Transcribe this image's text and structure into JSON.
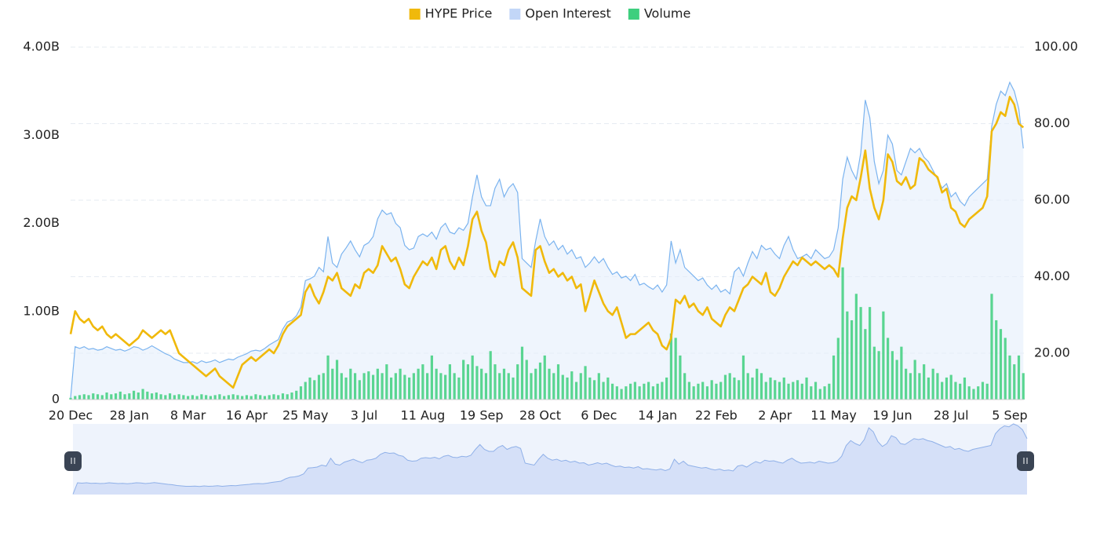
{
  "chart_data": {
    "type": "combo",
    "categories": [
      "20 Dec",
      null,
      null,
      null,
      null,
      null,
      null,
      null,
      null,
      null,
      null,
      null,
      null,
      "28 Jan",
      null,
      null,
      null,
      null,
      null,
      null,
      null,
      null,
      null,
      null,
      null,
      null,
      "8 Mar",
      null,
      null,
      null,
      null,
      null,
      null,
      null,
      null,
      null,
      null,
      null,
      null,
      "16 Apr",
      null,
      null,
      null,
      null,
      null,
      null,
      null,
      null,
      null,
      null,
      null,
      null,
      "25 May",
      null,
      null,
      null,
      null,
      null,
      null,
      null,
      null,
      null,
      null,
      null,
      null,
      "3 Jul",
      null,
      null,
      null,
      null,
      null,
      null,
      null,
      null,
      null,
      null,
      null,
      null,
      "11 Aug",
      null,
      null,
      null,
      null,
      null,
      null,
      null,
      null,
      null,
      null,
      null,
      null,
      "19 Sep",
      null,
      null,
      null,
      null,
      null,
      null,
      null,
      null,
      null,
      null,
      null,
      null,
      "28 Oct",
      null,
      null,
      null,
      null,
      null,
      null,
      null,
      null,
      null,
      null,
      null,
      null,
      "6 Dec",
      null,
      null,
      null,
      null,
      null,
      null,
      null,
      null,
      null,
      null,
      null,
      null,
      "14 Jan",
      null,
      null,
      null,
      null,
      null,
      null,
      null,
      null,
      null,
      null,
      null,
      null,
      "22 Feb",
      null,
      null,
      null,
      null,
      null,
      null,
      null,
      null,
      null,
      null,
      null,
      null,
      "2 Apr",
      null,
      null,
      null,
      null,
      null,
      null,
      null,
      null,
      null,
      null,
      null,
      null,
      "11 May",
      null,
      null,
      null,
      null,
      null,
      null,
      null,
      null,
      null,
      null,
      null,
      null,
      "19 Jun",
      null,
      null,
      null,
      null,
      null,
      null,
      null,
      null,
      null,
      null,
      null,
      null,
      "28 Jul",
      null,
      null,
      null,
      null,
      null,
      null,
      null,
      null,
      null,
      null,
      null,
      null,
      "5 Sep",
      null,
      null,
      null
    ],
    "series": [
      {
        "name": "HYPE Price",
        "type": "line",
        "axis": "y2",
        "color": "#f0b90b",
        "values": [
          25,
          31,
          29,
          28,
          29,
          27,
          26,
          27,
          25,
          24,
          25,
          24,
          23,
          22,
          23,
          24,
          26,
          25,
          24,
          25,
          26,
          25,
          26,
          23,
          20,
          19,
          18,
          17,
          16,
          15,
          14,
          15,
          16,
          14,
          13,
          12,
          11,
          14,
          17,
          18,
          19,
          18,
          19,
          20,
          21,
          20,
          22,
          25,
          27,
          28,
          29,
          30,
          36,
          38,
          35,
          33,
          36,
          40,
          39,
          41,
          37,
          36,
          35,
          38,
          37,
          41,
          42,
          41,
          43,
          48,
          46,
          44,
          45,
          42,
          38,
          37,
          40,
          42,
          44,
          43,
          45,
          42,
          47,
          48,
          44,
          42,
          45,
          43,
          48,
          55,
          57,
          52,
          49,
          42,
          40,
          44,
          43,
          47,
          49,
          45,
          37,
          36,
          35,
          47,
          48,
          44,
          41,
          42,
          40,
          41,
          39,
          40,
          37,
          38,
          31,
          35,
          39,
          36,
          33,
          31,
          30,
          32,
          28,
          24,
          25,
          25,
          26,
          27,
          28,
          26,
          25,
          22,
          21,
          24,
          34,
          33,
          35,
          32,
          33,
          31,
          30,
          32,
          29,
          28,
          27,
          30,
          32,
          31,
          34,
          37,
          38,
          40,
          39,
          38,
          41,
          36,
          35,
          37,
          40,
          42,
          44,
          43,
          45,
          44,
          43,
          44,
          43,
          42,
          43,
          42,
          40,
          50,
          58,
          61,
          60,
          66,
          73,
          63,
          58,
          55,
          60,
          72,
          70,
          65,
          64,
          66,
          63,
          64,
          71,
          70,
          68,
          67,
          66,
          62,
          63,
          58,
          57,
          54,
          53,
          55,
          56,
          57,
          58,
          61,
          78,
          80,
          83,
          82,
          87,
          85,
          80,
          79
        ]
      },
      {
        "name": "Open Interest",
        "type": "area",
        "color": "#7ab3ef",
        "values": [
          0.02,
          0.6,
          0.58,
          0.6,
          0.57,
          0.58,
          0.56,
          0.57,
          0.6,
          0.58,
          0.56,
          0.57,
          0.55,
          0.57,
          0.6,
          0.59,
          0.56,
          0.58,
          0.61,
          0.58,
          0.55,
          0.52,
          0.5,
          0.46,
          0.44,
          0.42,
          0.42,
          0.43,
          0.41,
          0.44,
          0.42,
          0.43,
          0.45,
          0.42,
          0.44,
          0.46,
          0.45,
          0.48,
          0.5,
          0.52,
          0.55,
          0.56,
          0.55,
          0.58,
          0.62,
          0.65,
          0.68,
          0.8,
          0.88,
          0.9,
          0.95,
          1.05,
          1.35,
          1.37,
          1.4,
          1.5,
          1.45,
          1.85,
          1.55,
          1.5,
          1.65,
          1.72,
          1.8,
          1.7,
          1.62,
          1.75,
          1.78,
          1.85,
          2.05,
          2.15,
          2.1,
          2.12,
          2.0,
          1.95,
          1.75,
          1.7,
          1.72,
          1.85,
          1.88,
          1.85,
          1.9,
          1.82,
          1.95,
          2.0,
          1.9,
          1.88,
          1.95,
          1.92,
          2.0,
          2.3,
          2.55,
          2.3,
          2.2,
          2.2,
          2.4,
          2.5,
          2.3,
          2.4,
          2.45,
          2.35,
          1.6,
          1.55,
          1.5,
          1.8,
          2.05,
          1.85,
          1.75,
          1.8,
          1.7,
          1.75,
          1.65,
          1.7,
          1.6,
          1.62,
          1.5,
          1.55,
          1.62,
          1.55,
          1.6,
          1.5,
          1.42,
          1.45,
          1.38,
          1.4,
          1.35,
          1.42,
          1.3,
          1.32,
          1.28,
          1.25,
          1.3,
          1.22,
          1.3,
          1.8,
          1.55,
          1.7,
          1.5,
          1.45,
          1.4,
          1.35,
          1.38,
          1.3,
          1.25,
          1.3,
          1.22,
          1.25,
          1.2,
          1.45,
          1.5,
          1.4,
          1.55,
          1.68,
          1.6,
          1.75,
          1.7,
          1.72,
          1.65,
          1.6,
          1.75,
          1.85,
          1.7,
          1.6,
          1.62,
          1.65,
          1.6,
          1.7,
          1.65,
          1.6,
          1.62,
          1.7,
          1.95,
          2.5,
          2.75,
          2.6,
          2.5,
          2.8,
          3.4,
          3.2,
          2.7,
          2.45,
          2.6,
          3.0,
          2.9,
          2.6,
          2.55,
          2.7,
          2.85,
          2.8,
          2.85,
          2.75,
          2.7,
          2.6,
          2.5,
          2.4,
          2.45,
          2.3,
          2.35,
          2.25,
          2.2,
          2.3,
          2.35,
          2.4,
          2.45,
          2.5,
          3.1,
          3.35,
          3.5,
          3.45,
          3.6,
          3.5,
          3.3,
          2.85
        ]
      },
      {
        "name": "Volume",
        "type": "bar",
        "color": "#3ecf7e",
        "values": [
          0.02,
          0.04,
          0.05,
          0.06,
          0.05,
          0.07,
          0.06,
          0.05,
          0.08,
          0.06,
          0.07,
          0.09,
          0.06,
          0.07,
          0.1,
          0.08,
          0.12,
          0.09,
          0.07,
          0.08,
          0.06,
          0.05,
          0.07,
          0.05,
          0.06,
          0.05,
          0.04,
          0.05,
          0.04,
          0.06,
          0.05,
          0.04,
          0.05,
          0.06,
          0.04,
          0.05,
          0.06,
          0.05,
          0.04,
          0.05,
          0.04,
          0.06,
          0.05,
          0.04,
          0.05,
          0.06,
          0.05,
          0.07,
          0.06,
          0.08,
          0.1,
          0.15,
          0.2,
          0.25,
          0.22,
          0.28,
          0.3,
          0.5,
          0.35,
          0.45,
          0.3,
          0.25,
          0.35,
          0.3,
          0.22,
          0.3,
          0.32,
          0.28,
          0.35,
          0.3,
          0.4,
          0.25,
          0.3,
          0.35,
          0.28,
          0.25,
          0.3,
          0.35,
          0.4,
          0.3,
          0.5,
          0.35,
          0.3,
          0.28,
          0.4,
          0.3,
          0.25,
          0.45,
          0.4,
          0.5,
          0.38,
          0.35,
          0.3,
          0.55,
          0.4,
          0.3,
          0.35,
          0.3,
          0.25,
          0.4,
          0.6,
          0.45,
          0.3,
          0.35,
          0.42,
          0.5,
          0.35,
          0.3,
          0.4,
          0.28,
          0.25,
          0.32,
          0.2,
          0.3,
          0.38,
          0.25,
          0.22,
          0.3,
          0.2,
          0.25,
          0.18,
          0.15,
          0.12,
          0.15,
          0.18,
          0.2,
          0.15,
          0.18,
          0.2,
          0.15,
          0.18,
          0.2,
          0.25,
          0.75,
          0.7,
          0.5,
          0.3,
          0.2,
          0.15,
          0.18,
          0.2,
          0.15,
          0.22,
          0.18,
          0.2,
          0.28,
          0.3,
          0.25,
          0.22,
          0.5,
          0.3,
          0.25,
          0.35,
          0.3,
          0.2,
          0.25,
          0.22,
          0.2,
          0.25,
          0.18,
          0.2,
          0.22,
          0.18,
          0.25,
          0.15,
          0.2,
          0.12,
          0.15,
          0.18,
          0.5,
          0.7,
          1.5,
          1.0,
          0.9,
          1.2,
          1.05,
          0.8,
          1.05,
          0.6,
          0.55,
          1.0,
          0.7,
          0.55,
          0.45,
          0.6,
          0.35,
          0.3,
          0.45,
          0.3,
          0.4,
          0.25,
          0.35,
          0.3,
          0.2,
          0.25,
          0.28,
          0.2,
          0.18,
          0.25,
          0.15,
          0.12,
          0.15,
          0.2,
          0.18,
          1.2,
          0.9,
          0.8,
          0.7,
          0.5,
          0.4,
          0.5,
          0.3
        ]
      }
    ],
    "ylim": [
      0,
      4
    ],
    "yticks": [
      0,
      {
        "value": 1,
        "label": "1.00B"
      },
      {
        "value": 2,
        "label": "2.00B"
      },
      {
        "value": 3,
        "label": "3.00B"
      },
      {
        "value": 4,
        "label": "4.00B"
      }
    ],
    "y2lim": [
      7.9,
      100
    ],
    "y2ticks": [
      {
        "value": 20,
        "label": "20.00"
      },
      {
        "value": 40,
        "label": "40.00"
      },
      {
        "value": 60,
        "label": "60.00"
      },
      {
        "value": 80,
        "label": "80.00"
      },
      {
        "value": 100,
        "label": "100.00"
      }
    ],
    "grid": true,
    "legend": "top"
  }
}
